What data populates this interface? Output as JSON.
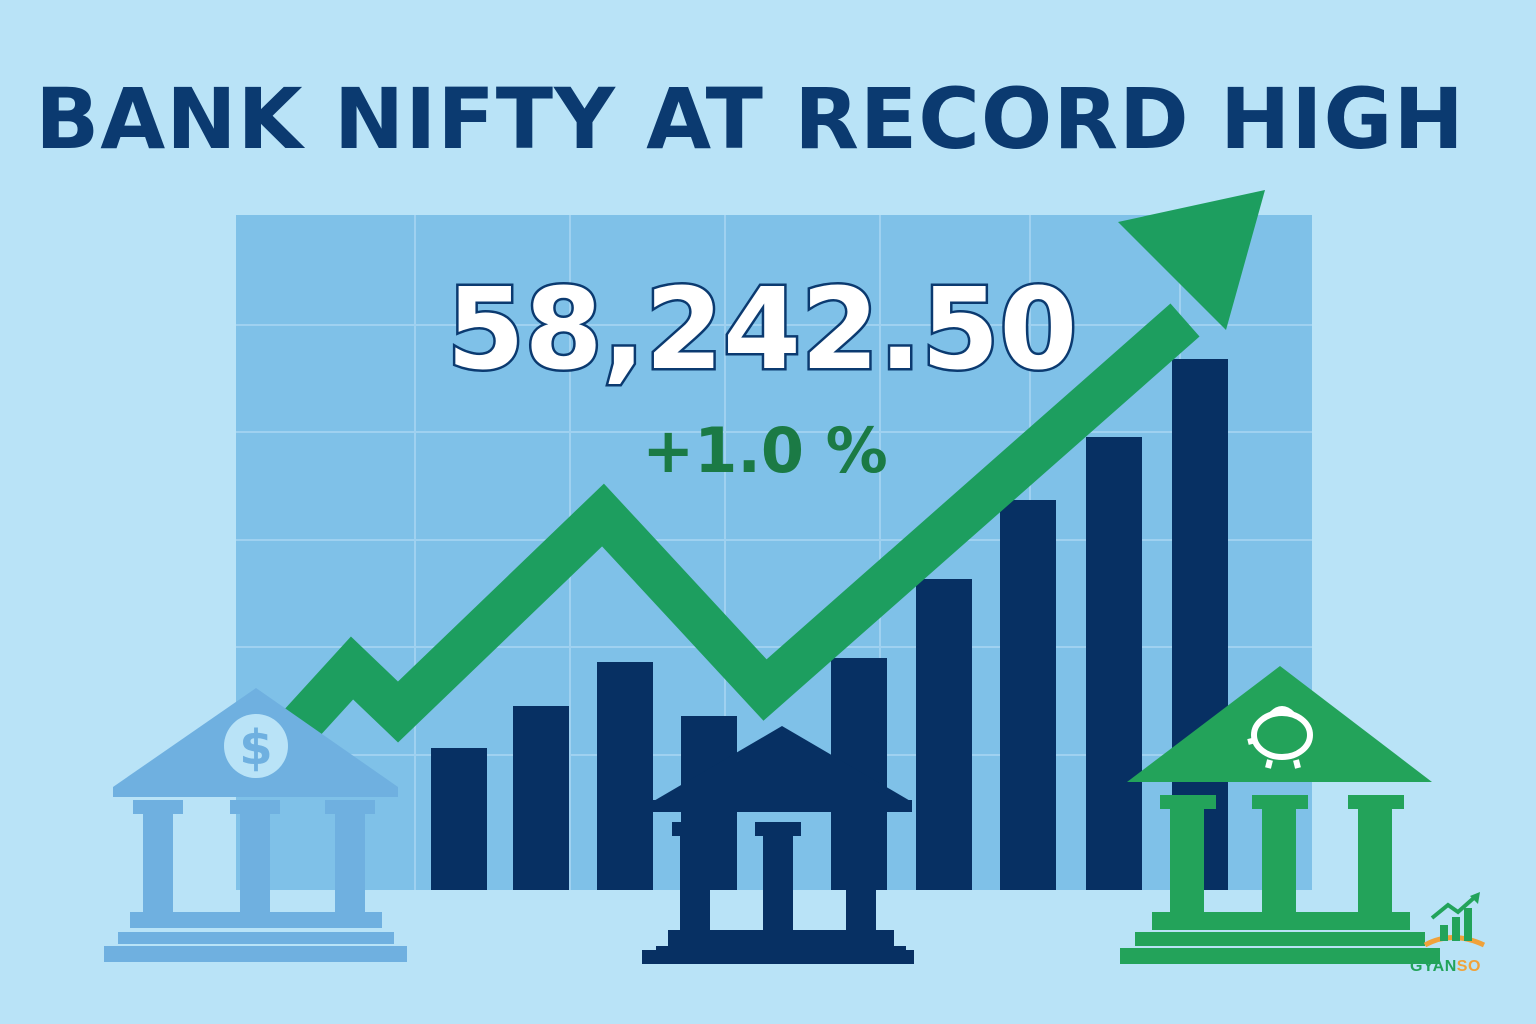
{
  "headline": "BANK NIFTY AT RECORD HIGH",
  "index_value": "58,242.50",
  "change": "+1.0 %",
  "bank_left_icon_symbol": "$",
  "brand": {
    "name_part_1": "GYAN",
    "name_part_2": "SO"
  },
  "icons": [
    "bank-building-dollar-icon",
    "bank-building-icon",
    "bank-building-piggy-bank-icon",
    "trend-up-arrow-icon"
  ],
  "colors": {
    "background": "#b9e3f7",
    "panel": "#7fc1e8",
    "bar": "#073063",
    "arrow": "#1d9e5f",
    "headline": "#0b3a70",
    "change": "#1b7a45",
    "bank_light": "#6fb0e0",
    "bank_dark": "#073063",
    "bank_green": "#23a35a"
  }
}
